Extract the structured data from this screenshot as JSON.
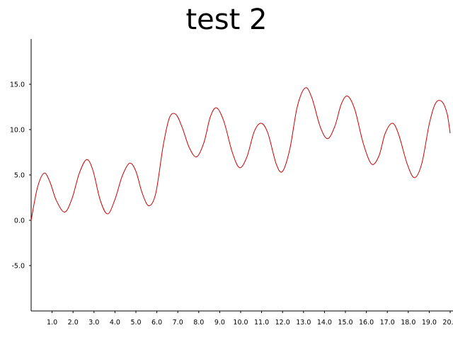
{
  "chart_data": {
    "type": "line",
    "title": "test 2",
    "xlabel": "",
    "ylabel": "",
    "xlim": [
      0,
      20
    ],
    "ylim": [
      -10,
      20
    ],
    "x_ticks": [
      1,
      2,
      3,
      4,
      5,
      6,
      7,
      8,
      9,
      10,
      11,
      12,
      13,
      14,
      15,
      16,
      17,
      18,
      19,
      20
    ],
    "x_tick_labels": [
      "1.0",
      "2.0",
      "3.0",
      "4.0",
      "5.0",
      "6.0",
      "7.0",
      "8.0",
      "9.0",
      "10.0",
      "11.0",
      "12.0",
      "13.0",
      "14.0",
      "15.0",
      "16.0",
      "17.0",
      "18.0",
      "19.0",
      "20.0"
    ],
    "y_ticks": [
      -5,
      0,
      5,
      10,
      15
    ],
    "y_tick_labels": [
      "-5.0",
      "0.0",
      "5.0",
      "10.0",
      "15.0"
    ],
    "grid": false,
    "line_color": "#cc0000",
    "series": [
      {
        "x": [
          0.0,
          0.3,
          0.62,
          0.9,
          1.2,
          1.6,
          1.95,
          2.3,
          2.65,
          2.95,
          3.3,
          3.65,
          4.0,
          4.35,
          4.7,
          5.0,
          5.3,
          5.62,
          5.95,
          6.3,
          6.6,
          6.9,
          7.2,
          7.55,
          7.9,
          8.25,
          8.55,
          8.85,
          9.2,
          9.6,
          9.95,
          10.3,
          10.65,
          10.98,
          11.3,
          11.7,
          12.0,
          12.35,
          12.7,
          13.08,
          13.4,
          13.8,
          14.15,
          14.5,
          14.8,
          15.1,
          15.45,
          15.85,
          16.25,
          16.6,
          16.9,
          17.25,
          17.55,
          17.95,
          18.3,
          18.65,
          19.0,
          19.3,
          19.6,
          19.85,
          20.0
        ],
        "y": [
          0.0,
          3.6,
          5.2,
          4.2,
          2.2,
          0.9,
          2.4,
          5.2,
          6.7,
          5.5,
          2.2,
          0.7,
          2.3,
          4.9,
          6.3,
          5.4,
          3.0,
          1.6,
          3.0,
          8.2,
          11.3,
          11.7,
          10.3,
          8.0,
          7.0,
          8.6,
          11.4,
          12.4,
          10.9,
          7.5,
          5.8,
          7.0,
          9.8,
          10.7,
          9.6,
          6.2,
          5.4,
          7.9,
          12.5,
          14.6,
          13.5,
          10.3,
          9.0,
          10.4,
          12.8,
          13.7,
          12.2,
          8.5,
          6.2,
          7.1,
          9.6,
          10.7,
          9.4,
          6.2,
          4.7,
          6.3,
          10.6,
          12.9,
          13.1,
          11.8,
          9.6
        ]
      }
    ]
  }
}
